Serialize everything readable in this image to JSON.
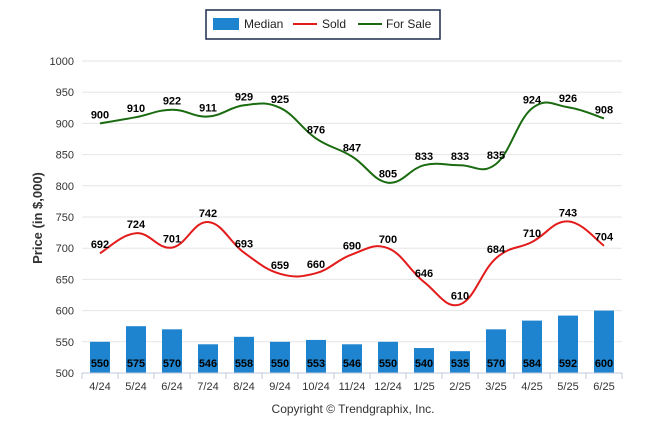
{
  "chart_data": {
    "type": "bar",
    "categories": [
      "4/24",
      "5/24",
      "6/24",
      "7/24",
      "8/24",
      "9/24",
      "10/24",
      "11/24",
      "12/24",
      "1/25",
      "2/25",
      "3/25",
      "4/25",
      "5/25",
      "6/25"
    ],
    "series": [
      {
        "name": "Median",
        "type": "bar",
        "color": "#1f84d0",
        "values": [
          550,
          575,
          570,
          546,
          558,
          550,
          553,
          546,
          550,
          540,
          535,
          570,
          584,
          592,
          600
        ]
      },
      {
        "name": "Sold",
        "type": "line",
        "color": "#e31b1b",
        "values": [
          692,
          724,
          701,
          742,
          693,
          659,
          660,
          690,
          700,
          646,
          610,
          684,
          710,
          743,
          704
        ]
      },
      {
        "name": "For Sale",
        "type": "line",
        "color": "#1a6b10",
        "values": [
          900,
          910,
          922,
          911,
          929,
          925,
          876,
          847,
          805,
          833,
          833,
          835,
          924,
          926,
          908
        ]
      }
    ],
    "ylabel": "Price (in $,000)",
    "ylim": [
      500,
      1000
    ],
    "yticks": [
      500,
      550,
      600,
      650,
      700,
      750,
      800,
      850,
      900,
      950,
      1000
    ],
    "grid": true,
    "legend_position": "top-center"
  },
  "credit": "Copyright © Trendgraphix, Inc."
}
